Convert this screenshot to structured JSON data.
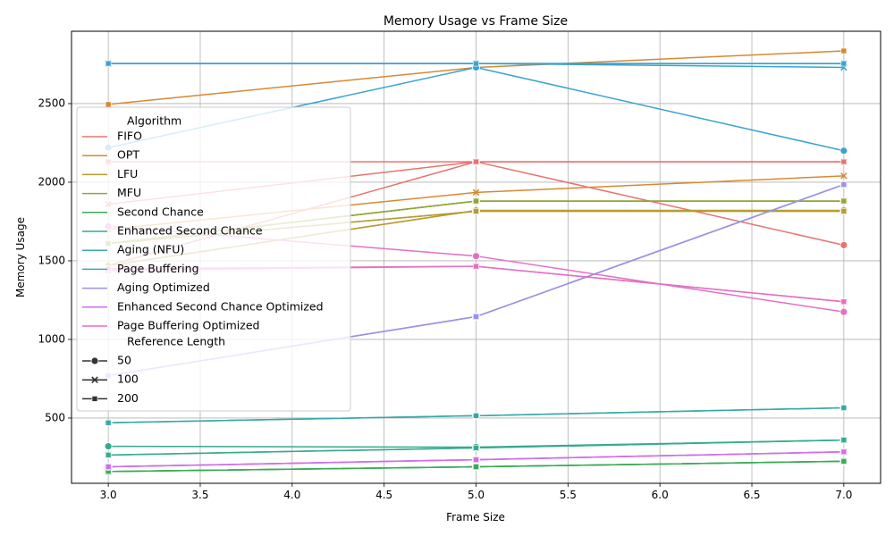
{
  "chart_data": {
    "type": "line",
    "title": "Memory Usage vs Frame Size",
    "xlabel": "Frame Size",
    "ylabel": "Memory Usage",
    "xlim": [
      2.8,
      7.2
    ],
    "ylim": [
      85,
      2960
    ],
    "xticks": [
      3.0,
      3.5,
      4.0,
      4.5,
      5.0,
      5.5,
      6.0,
      6.5,
      7.0
    ],
    "yticks": [
      500,
      1000,
      1500,
      2000,
      2500
    ],
    "grid": true,
    "legend_position": "center-left",
    "x": [
      3,
      5,
      7
    ],
    "hue_title": "Algorithm",
    "style_title": "Reference Length",
    "algorithms": [
      {
        "name": "FIFO",
        "color": "#e8736f"
      },
      {
        "name": "OPT",
        "color": "#d98831"
      },
      {
        "name": "LFU",
        "color": "#b49c33"
      },
      {
        "name": "MFU",
        "color": "#8fa636"
      },
      {
        "name": "Second Chance",
        "color": "#3aab55"
      },
      {
        "name": "Enhanced Second Chance",
        "color": "#36aa8d"
      },
      {
        "name": "Aging (NFU)",
        "color": "#37a8a6"
      },
      {
        "name": "Page Buffering",
        "color": "#3ba3cf"
      },
      {
        "name": "Aging Optimized",
        "color": "#9993e6"
      },
      {
        "name": "Enhanced Second Chance Optimized",
        "color": "#cf6ee8"
      },
      {
        "name": "Page Buffering Optimized",
        "color": "#e66fc5"
      }
    ],
    "styles": [
      {
        "name": "50",
        "marker": "circle"
      },
      {
        "name": "100",
        "marker": "x"
      },
      {
        "name": "200",
        "marker": "square"
      }
    ],
    "series": [
      {
        "algorithm": "FIFO",
        "ref": "50",
        "values": [
          1470,
          2130,
          1600
        ]
      },
      {
        "algorithm": "FIFO",
        "ref": "100",
        "values": [
          1860,
          2130,
          2130
        ]
      },
      {
        "algorithm": "FIFO",
        "ref": "200",
        "values": [
          2130,
          2130,
          2130
        ]
      },
      {
        "algorithm": "OPT",
        "ref": "50",
        "values": [
          1470,
          1820,
          1820
        ]
      },
      {
        "algorithm": "OPT",
        "ref": "100",
        "values": [
          1700,
          1935,
          2040
        ]
      },
      {
        "algorithm": "OPT",
        "ref": "200",
        "values": [
          2495,
          2730,
          2835
        ]
      },
      {
        "algorithm": "LFU",
        "ref": "50",
        "values": [
          1470,
          1820,
          1820
        ]
      },
      {
        "algorithm": "LFU",
        "ref": "100",
        "values": [
          1610,
          1815,
          1815
        ]
      },
      {
        "algorithm": "LFU",
        "ref": "200",
        "values": [
          1610,
          1815,
          1815
        ]
      },
      {
        "algorithm": "MFU",
        "ref": "50",
        "values": [
          1610,
          1880,
          1880
        ]
      },
      {
        "algorithm": "MFU",
        "ref": "100",
        "values": [
          1610,
          1880,
          1880
        ]
      },
      {
        "algorithm": "MFU",
        "ref": "200",
        "values": [
          1610,
          1880,
          1880
        ]
      },
      {
        "algorithm": "Second Chance",
        "ref": "50",
        "values": [
          160,
          190,
          225
        ]
      },
      {
        "algorithm": "Second Chance",
        "ref": "100",
        "values": [
          160,
          190,
          225
        ]
      },
      {
        "algorithm": "Second Chance",
        "ref": "200",
        "values": [
          160,
          190,
          225
        ]
      },
      {
        "algorithm": "Enhanced Second Chance",
        "ref": "50",
        "values": [
          320,
          315,
          360
        ]
      },
      {
        "algorithm": "Enhanced Second Chance",
        "ref": "100",
        "values": [
          265,
          310,
          360
        ]
      },
      {
        "algorithm": "Enhanced Second Chance",
        "ref": "200",
        "values": [
          265,
          310,
          360
        ]
      },
      {
        "algorithm": "Aging (NFU)",
        "ref": "50",
        "values": [
          470,
          515,
          565
        ]
      },
      {
        "algorithm": "Aging (NFU)",
        "ref": "100",
        "values": [
          2755,
          2755,
          2755
        ]
      },
      {
        "algorithm": "Aging (NFU)",
        "ref": "200",
        "values": [
          470,
          515,
          565
        ]
      },
      {
        "algorithm": "Page Buffering",
        "ref": "50",
        "values": [
          2220,
          2730,
          2200
        ]
      },
      {
        "algorithm": "Page Buffering",
        "ref": "100",
        "values": [
          2755,
          2755,
          2730
        ]
      },
      {
        "algorithm": "Page Buffering",
        "ref": "200",
        "values": [
          2755,
          2755,
          2755
        ]
      },
      {
        "algorithm": "Aging Optimized",
        "ref": "50",
        "values": [
          770,
          1145,
          1985
        ]
      },
      {
        "algorithm": "Aging Optimized",
        "ref": "100",
        "values": [
          770,
          1145,
          1985
        ]
      },
      {
        "algorithm": "Aging Optimized",
        "ref": "200",
        "values": [
          770,
          1145,
          1985
        ]
      },
      {
        "algorithm": "Enhanced Second Chance Optimized",
        "ref": "50",
        "values": [
          190,
          235,
          285
        ]
      },
      {
        "algorithm": "Enhanced Second Chance Optimized",
        "ref": "100",
        "values": [
          190,
          235,
          285
        ]
      },
      {
        "algorithm": "Enhanced Second Chance Optimized",
        "ref": "200",
        "values": [
          190,
          235,
          285
        ]
      },
      {
        "algorithm": "Page Buffering Optimized",
        "ref": "50",
        "values": [
          1720,
          1530,
          1175
        ]
      },
      {
        "algorithm": "Page Buffering Optimized",
        "ref": "100",
        "values": [
          1440,
          1465,
          1240
        ]
      },
      {
        "algorithm": "Page Buffering Optimized",
        "ref": "200",
        "values": [
          1450,
          1465,
          1240
        ]
      }
    ]
  }
}
